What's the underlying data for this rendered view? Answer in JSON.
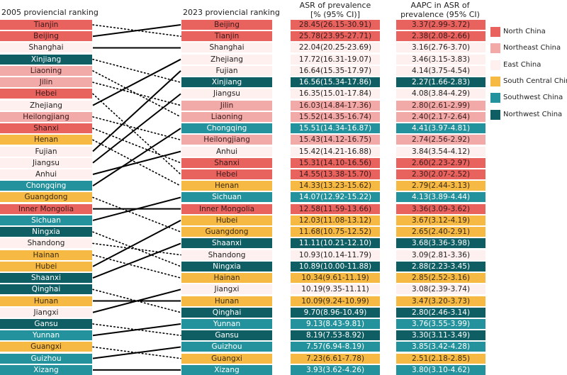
{
  "headers": {
    "left": "2005 proviencial ranking",
    "right": "2023 proviencial ranking",
    "asr_line1": "ASR of prevalence",
    "asr_line2": "[% (95% CI)]",
    "aapc_line1": "AAPC in ASR of",
    "aapc_line2": "prevalence (95% CI)"
  },
  "regions": [
    {
      "name": "North China",
      "color": "#e8625e",
      "text": "#3a1a1a"
    },
    {
      "name": "Northeast China",
      "color": "#f2aaa9",
      "text": "#3a1a1a"
    },
    {
      "name": "East China",
      "color": "#fdf0ef",
      "text": "#222222"
    },
    {
      "name": "South Central China",
      "color": "#f6b944",
      "text": "#3a2a10"
    },
    {
      "name": "Southwest China",
      "color": "#23929c",
      "text": "#ffffff"
    },
    {
      "name": "Northwest China",
      "color": "#0f5e63",
      "text": "#ffffff"
    }
  ],
  "province_region": {
    "Beijing": 0,
    "Tianjin": 0,
    "Hebei": 0,
    "Shanxi": 0,
    "Inner Mongolia": 0,
    "Liaoning": 1,
    "Jilin": 1,
    "Heilongjiang": 1,
    "Shanghai": 2,
    "Zhejiang": 2,
    "Fujian": 2,
    "Jiangsu": 2,
    "Anhui": 2,
    "Shandong": 2,
    "Jiangxi": 2,
    "Henan": 3,
    "Hubei": 3,
    "Hunan": 3,
    "Guangdong": 3,
    "Guangxi": 3,
    "Hainan": 3,
    "Chongqing": 4,
    "Sichuan": 4,
    "Guizhou": 4,
    "Yunnan": 4,
    "Xizang": 4,
    "Xinjiang": 5,
    "Ningxia": 5,
    "Shaanxi": 5,
    "Qinghai": 5,
    "Gansu": 5
  },
  "ranking_2005": [
    "Tianjin",
    "Beijing",
    "Shanghai",
    "Xinjiang",
    "Liaoning",
    "Jilin",
    "Hebei",
    "Zhejiang",
    "Heilongjiang",
    "Shanxi",
    "Henan",
    "Fujian",
    "Jiangsu",
    "Anhui",
    "Chongqing",
    "Guangdong",
    "Inner Mongolia",
    "Sichuan",
    "Ningxia",
    "Shandong",
    "Hainan",
    "Hubei",
    "Shaanxi",
    "Qinghai",
    "Hunan",
    "Jiangxi",
    "Gansu",
    "Yunnan",
    "Guangxi",
    "Guizhou",
    "Xizang"
  ],
  "ranking_2023": [
    {
      "province": "Beijing",
      "asr": "28.45(26.15-30.91)",
      "aapc": "3.37(2.99-3.72)"
    },
    {
      "province": "Tianjin",
      "asr": "25.78(23.95-27.71)",
      "aapc": "2.38(2.08-2.66)"
    },
    {
      "province": "Shanghai",
      "asr": "22.04(20.25-23.69)",
      "aapc": "3.16(2.76-3.70)"
    },
    {
      "province": "Zhejiang",
      "asr": "17.72(16.31-19.07)",
      "aapc": "3.46(3.15-3.83)"
    },
    {
      "province": "Fujian",
      "asr": "16.64(15.35-17.97)",
      "aapc": "4.14(3.75-4.54)"
    },
    {
      "province": "Xinjiang",
      "asr": "16.56(15.34-17.86)",
      "aapc": "2.27(1.66-2.83)"
    },
    {
      "province": "Jiangsu",
      "asr": "16.35(15.01-17.84)",
      "aapc": "4.08(3.84-4.29)"
    },
    {
      "province": "Jilin",
      "asr": "16.03(14.84-17.36)",
      "aapc": "2.80(2.61-2.99)"
    },
    {
      "province": "Liaoning",
      "asr": "15.52(14.35-16.74)",
      "aapc": "2.40(2.17-2.64)"
    },
    {
      "province": "Chongqing",
      "asr": "15.51(14.34-16.87)",
      "aapc": "4.41(3.97-4.81)"
    },
    {
      "province": "Heilongjiang",
      "asr": "15.43(14.12-16.75)",
      "aapc": "2.74(2.56-2.92)"
    },
    {
      "province": "Anhui",
      "asr": "15.42(14.21-16.88)",
      "aapc": "3.84(3.54-4.12)"
    },
    {
      "province": "Shanxi",
      "asr": "15.31(14.10-16.56)",
      "aapc": "2.60(2.23-2.97)"
    },
    {
      "province": "Hebei",
      "asr": "14.55(13.38-15.70)",
      "aapc": "2.30(2.07-2.52)"
    },
    {
      "province": "Henan",
      "asr": "14.33(13.23-15.62)",
      "aapc": "2.79(2.44-3.13)"
    },
    {
      "province": "Sichuan",
      "asr": "14.07(12.92-15.22)",
      "aapc": "4.13(3.89-4.44)"
    },
    {
      "province": "Inner Mongolia",
      "asr": "12.58(11.59-13.66)",
      "aapc": "3.36(3.09-3.62)"
    },
    {
      "province": "Hubei",
      "asr": "12.03(11.08-13.12)",
      "aapc": "3.67(3.12-4.19)"
    },
    {
      "province": "Guangdong",
      "asr": "11.68(10.75-12.52)",
      "aapc": "2.65(2.40-2.91)"
    },
    {
      "province": "Shaanxi",
      "asr": "11.11(10.21-12.10)",
      "aapc": "3.68(3.36-3.98)"
    },
    {
      "province": "Shandong",
      "asr": "10.93(10.14-11.79)",
      "aapc": "3.09(2.81-3.36)"
    },
    {
      "province": "Ningxia",
      "asr": "10.89(10.00-11.88)",
      "aapc": "2.88(2.23-3.45)"
    },
    {
      "province": "Hainan",
      "asr": "10.34(9.61-11.19)",
      "aapc": "2.85(2.52-3.16)"
    },
    {
      "province": "Jiangxi",
      "asr": "10.19(9.35-11.11)",
      "aapc": "3.08(2.39-3.74)"
    },
    {
      "province": "Hunan",
      "asr": "10.09(9.24-10.99)",
      "aapc": "3.47(3.20-3.73)"
    },
    {
      "province": "Qinghai",
      "asr": "9.70(8.96-10.49)",
      "aapc": "2.80(2.46-3.14)"
    },
    {
      "province": "Yunnan",
      "asr": "9.13(8.43-9.81)",
      "aapc": "3.76(3.55-3.99)"
    },
    {
      "province": "Gansu",
      "asr": "8.19(7.53-8.92)",
      "aapc": "3.30(3.11-3.49)"
    },
    {
      "province": "Guizhou",
      "asr": "7.57(6.94-8.19)",
      "aapc": "3.85(3.42-4.28)"
    },
    {
      "province": "Guangxi",
      "asr": "7.23(6.61-7.78)",
      "aapc": "2.51(2.18-2.85)"
    },
    {
      "province": "Xizang",
      "asr": "3.93(3.62-4.26)",
      "aapc": "3.80(3.10-4.62)"
    }
  ]
}
